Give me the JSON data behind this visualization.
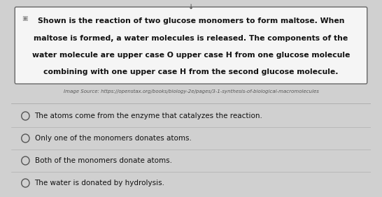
{
  "bg_color": "#d0d0d0",
  "box_color": "#f5f5f5",
  "box_border_color": "#666666",
  "main_text_lines": [
    "Shown is the reaction of two glucose monomers to form maltose. When",
    "maltose is formed, a water molecules is released. The components of the",
    "water molecule are upper case O upper case H from one glucose molecule",
    "combining with one upper case H from the second glucose molecule."
  ],
  "main_text_fontsize": 7.8,
  "source_text": "Image Source: https://openstax.org/books/biology-2e/pages/3-1-synthesis-of-biological-macromolecules",
  "source_fontsize": 5.0,
  "source_color": "#555555",
  "options": [
    "The atoms come from the enzyme that catalyzes the reaction.",
    "Only one of the monomers donates atoms.",
    "Both of the monomers donate atoms.",
    "The water is donated by hydrolysis."
  ],
  "option_fontsize": 7.5,
  "option_text_color": "#111111",
  "circle_color": "#555555",
  "divider_color": "#b0b0b0",
  "cursor_text": "↓"
}
